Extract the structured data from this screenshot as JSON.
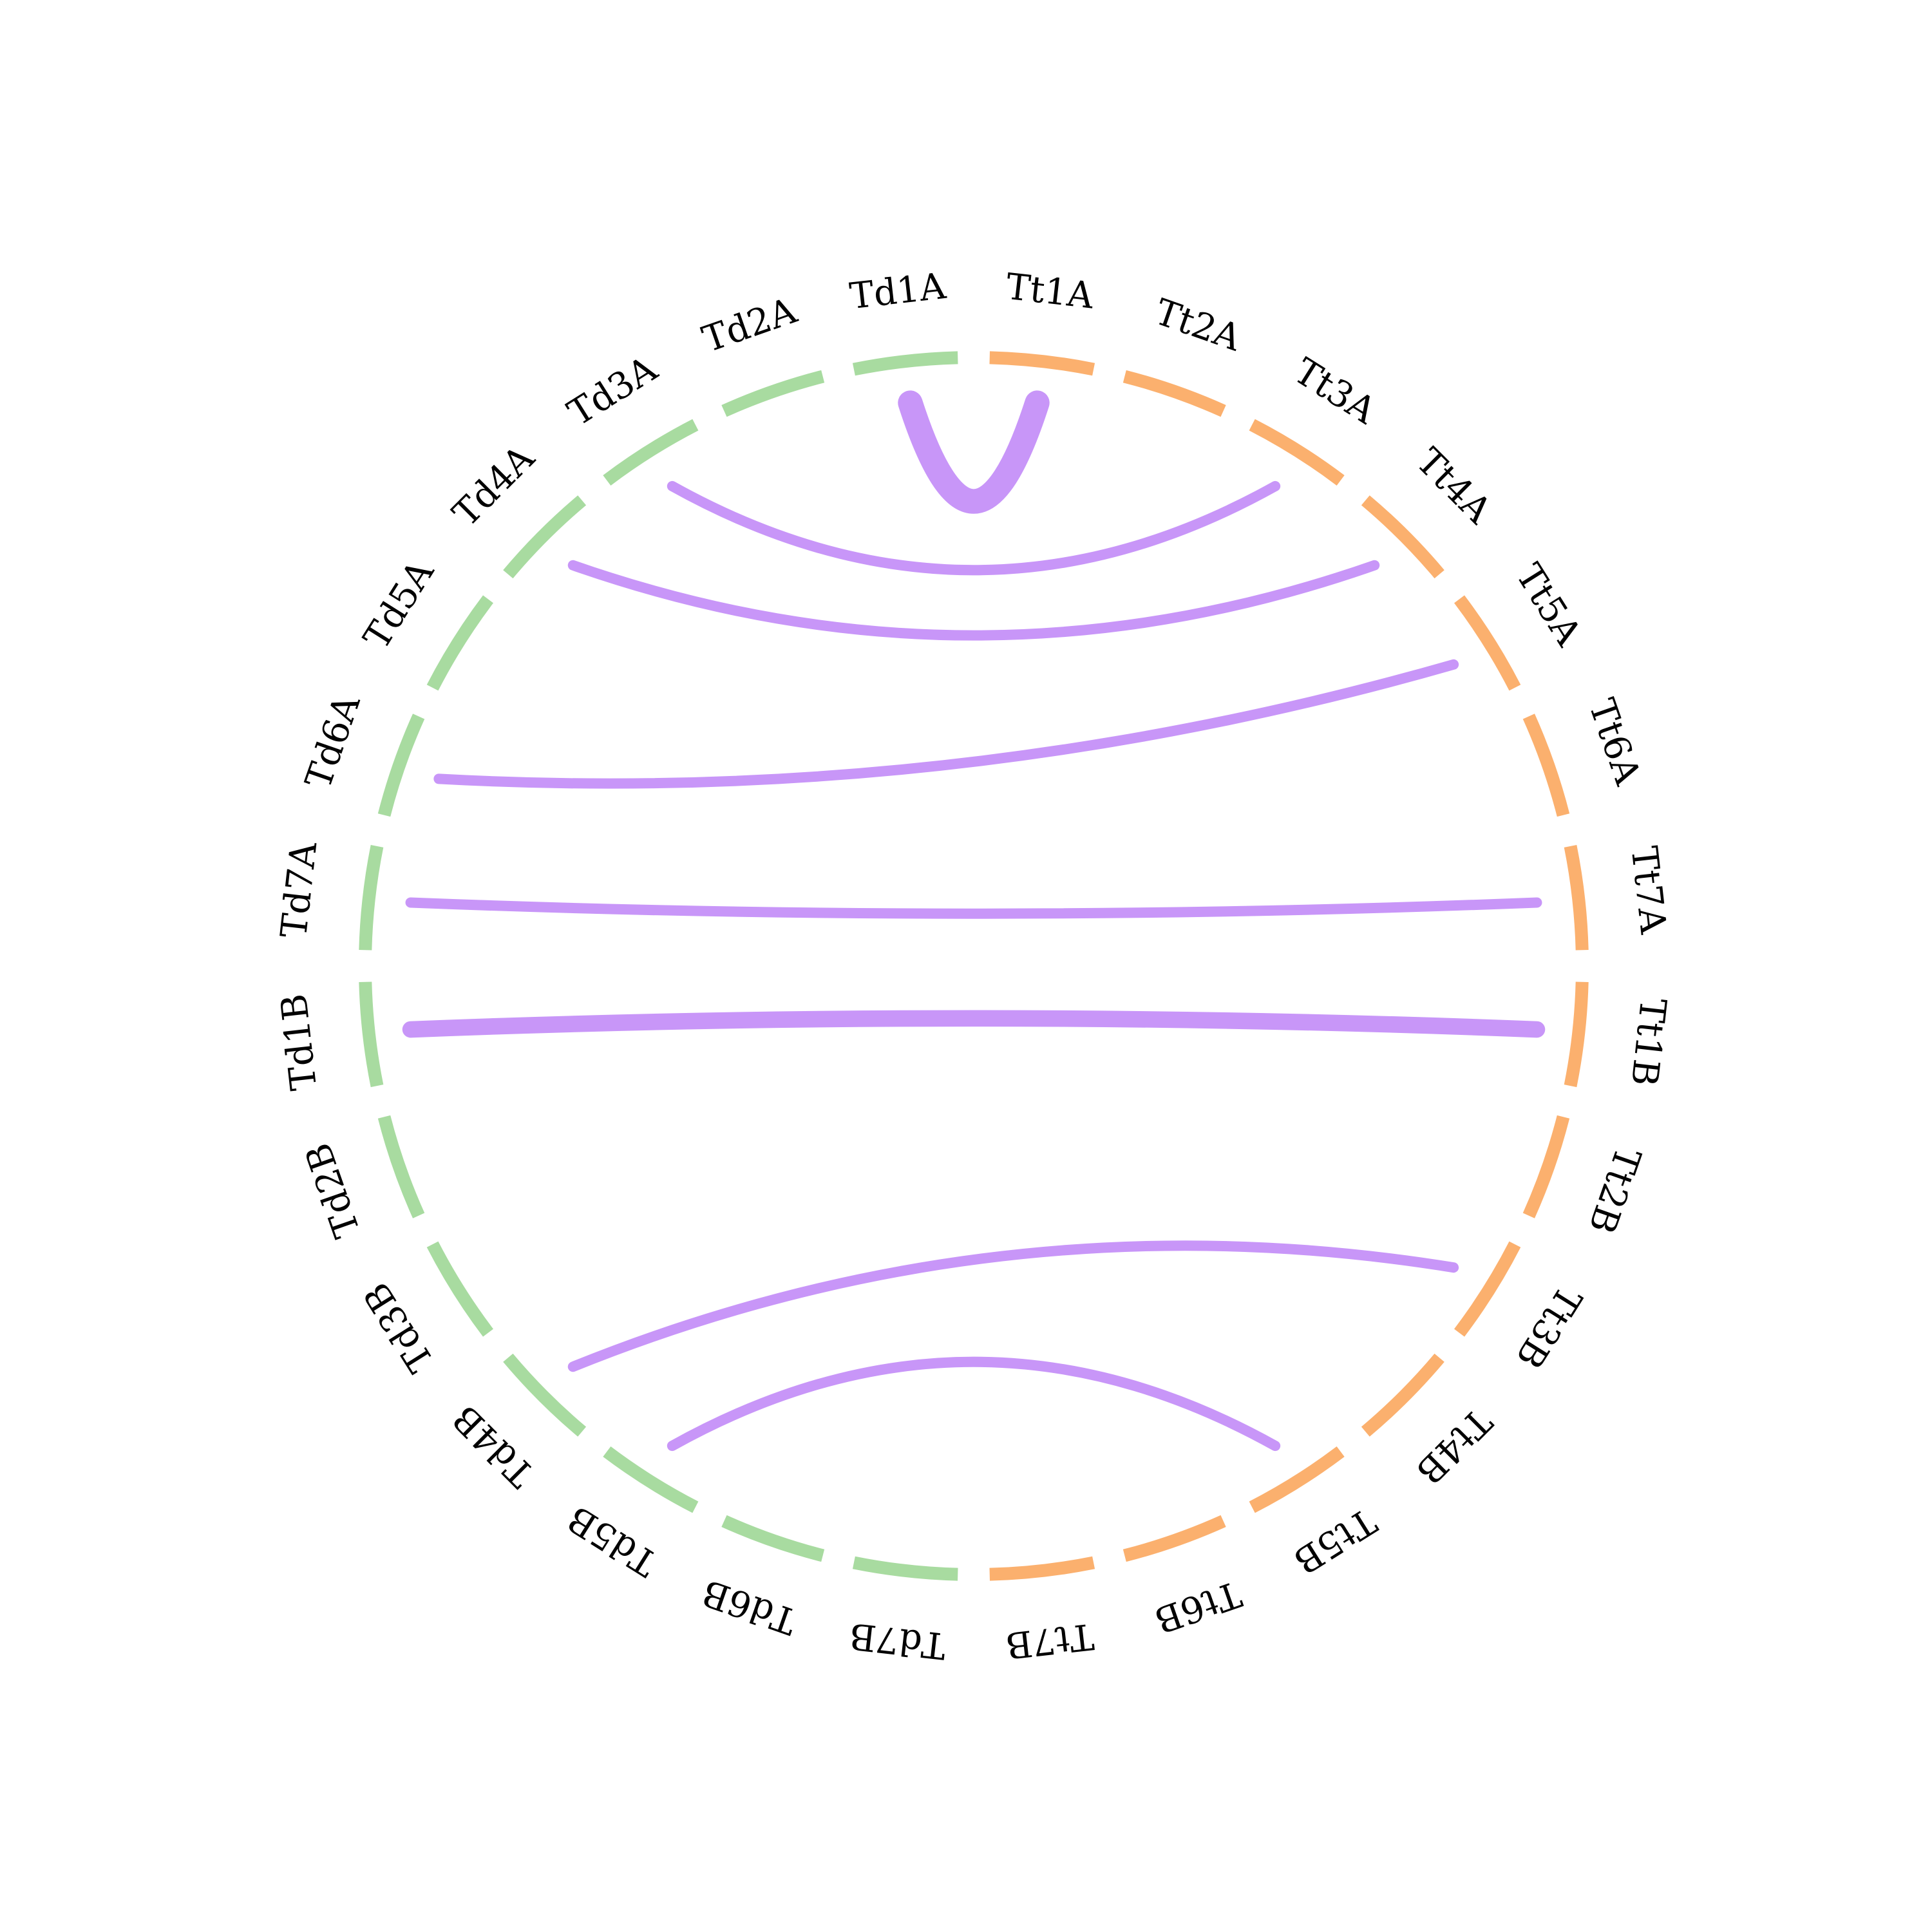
{
  "colors": {
    "td": "#a8dba0",
    "tt": "#fbb06e",
    "link": "#c896f8"
  },
  "chromosomes": [
    {
      "name": "Td1A",
      "group": "td"
    },
    {
      "name": "Td2A",
      "group": "td"
    },
    {
      "name": "Td3A",
      "group": "td"
    },
    {
      "name": "Td4A",
      "group": "td"
    },
    {
      "name": "Td5A",
      "group": "td"
    },
    {
      "name": "Td6A",
      "group": "td"
    },
    {
      "name": "Td7A",
      "group": "td"
    },
    {
      "name": "Td1B",
      "group": "td"
    },
    {
      "name": "Td2B",
      "group": "td"
    },
    {
      "name": "Td3B",
      "group": "td"
    },
    {
      "name": "Td4B",
      "group": "td"
    },
    {
      "name": "Td5B",
      "group": "td"
    },
    {
      "name": "Td6B",
      "group": "td"
    },
    {
      "name": "Td7B",
      "group": "td"
    },
    {
      "name": "Tt7B",
      "group": "tt"
    },
    {
      "name": "Tt6B",
      "group": "tt"
    },
    {
      "name": "Tt5B",
      "group": "tt"
    },
    {
      "name": "Tt4B",
      "group": "tt"
    },
    {
      "name": "Tt3B",
      "group": "tt"
    },
    {
      "name": "Tt2B",
      "group": "tt"
    },
    {
      "name": "Tt1B",
      "group": "tt"
    },
    {
      "name": "Tt7A",
      "group": "tt"
    },
    {
      "name": "Tt6A",
      "group": "tt"
    },
    {
      "name": "Tt5A",
      "group": "tt"
    },
    {
      "name": "Tt4A",
      "group": "tt"
    },
    {
      "name": "Tt3A",
      "group": "tt"
    },
    {
      "name": "Tt2A",
      "group": "tt"
    },
    {
      "name": "Tt1A",
      "group": "tt"
    }
  ],
  "links": [
    {
      "from": "Td1A",
      "to": "Tt1A",
      "weight": 2.4
    },
    {
      "from": "Td3A",
      "to": "Tt3A",
      "weight": 1
    },
    {
      "from": "Td4A",
      "to": "Tt4A",
      "weight": 1
    },
    {
      "from": "Td6A",
      "to": "Tt5A",
      "weight": 1
    },
    {
      "from": "Td7A",
      "to": "Tt7A",
      "weight": 1
    },
    {
      "from": "Td1B",
      "to": "Tt1B",
      "weight": 1.6
    },
    {
      "from": "Td4B",
      "to": "Tt3B",
      "weight": 1
    },
    {
      "from": "Td5B",
      "to": "Tt5B",
      "weight": 1
    }
  ]
}
